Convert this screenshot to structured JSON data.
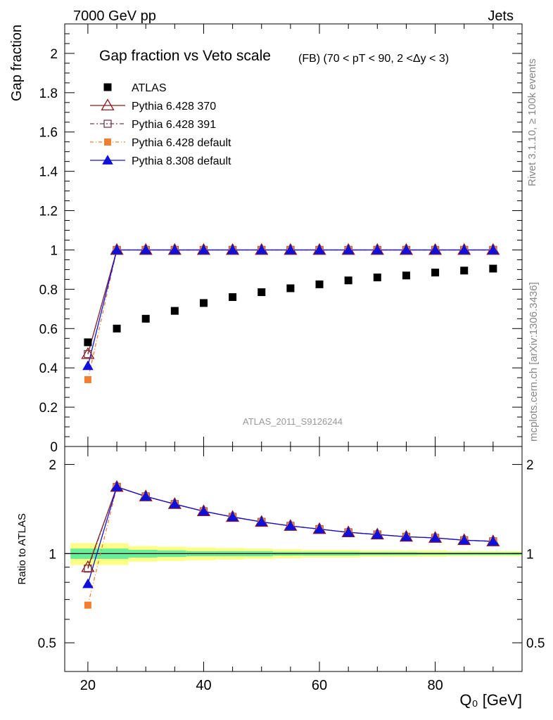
{
  "header": {
    "left": "7000 GeV pp",
    "right": "Jets"
  },
  "side_labels": {
    "rivet": "Rivet 3.1.10, ≥ 100k events",
    "mcplots": "mcplots.cern.ch [arXiv:1306.3436]"
  },
  "watermark": "ATLAS_2011_S9126244",
  "chart_data": [
    {
      "type": "scatter",
      "title": "Gap fraction vs Veto scale",
      "subtitle": "(FB) (70 < pT <  90, 2 <Δy < 3)",
      "ylabel": "Gap fraction",
      "xlabel": "",
      "xlim": [
        16,
        95
      ],
      "ylim": [
        0,
        2.15
      ],
      "yticks": [
        "0",
        "0.2",
        "0.4",
        "0.6",
        "0.8",
        "1",
        "1.2",
        "1.4",
        "1.6",
        "1.8",
        "2"
      ],
      "x": [
        20,
        25,
        30,
        35,
        40,
        45,
        50,
        55,
        60,
        65,
        70,
        75,
        80,
        85,
        90
      ],
      "series": [
        {
          "name": "ATLAS",
          "color": "#000000",
          "marker": "square",
          "values": [
            0.53,
            0.6,
            0.65,
            0.69,
            0.73,
            0.76,
            0.785,
            0.805,
            0.825,
            0.845,
            0.86,
            0.87,
            0.885,
            0.895,
            0.905
          ]
        },
        {
          "name": "Pythia 6.428 370",
          "color": "#8b1a1a",
          "marker": "triangle-open",
          "values": [
            0.47,
            1,
            1,
            1,
            1,
            1,
            1,
            1,
            1,
            1,
            1,
            1,
            1,
            1,
            1
          ]
        },
        {
          "name": "Pythia 6.428 391",
          "color": "#7a3a4a",
          "marker": "square-open",
          "values": [
            0.47,
            1,
            1,
            1,
            1,
            1,
            1,
            1,
            1,
            1,
            1,
            1,
            1,
            1,
            1
          ]
        },
        {
          "name": "Pythia 6.428 default",
          "color": "#f08030",
          "marker": "square",
          "values": [
            0.34,
            1,
            1,
            1,
            1,
            1,
            1,
            1,
            1,
            1,
            1,
            1,
            1,
            1,
            1
          ]
        },
        {
          "name": "Pythia 8.308 default",
          "color": "#1010dd",
          "marker": "triangle",
          "values": [
            0.41,
            1,
            1,
            1,
            1,
            1,
            1,
            1,
            1,
            1,
            1,
            1,
            1,
            1,
            1
          ]
        }
      ]
    },
    {
      "type": "scatter",
      "title": "",
      "ylabel": "Ratio to ATLAS",
      "xlabel": "Q₀ [GeV]",
      "xlim": [
        16,
        95
      ],
      "ylim": [
        0.4,
        2.3
      ],
      "yscale": "log",
      "yticks": [
        "0.5",
        "1",
        "2"
      ],
      "xticks": [
        "20",
        "40",
        "60",
        "80"
      ],
      "x": [
        20,
        25,
        30,
        35,
        40,
        45,
        50,
        55,
        60,
        65,
        70,
        75,
        80,
        85,
        90
      ],
      "series": [
        {
          "name": "Pythia 6.428 370",
          "color": "#8b1a1a",
          "marker": "triangle-open",
          "values": [
            0.9,
            1.68,
            1.56,
            1.47,
            1.39,
            1.33,
            1.28,
            1.24,
            1.21,
            1.18,
            1.16,
            1.14,
            1.13,
            1.11,
            1.1
          ]
        },
        {
          "name": "Pythia 6.428 391",
          "color": "#7a3a4a",
          "marker": "square-open",
          "values": [
            0.89,
            1.68,
            1.56,
            1.47,
            1.39,
            1.33,
            1.28,
            1.24,
            1.21,
            1.18,
            1.16,
            1.14,
            1.13,
            1.11,
            1.1
          ]
        },
        {
          "name": "Pythia 6.428 default",
          "color": "#f08030",
          "marker": "square",
          "values": [
            0.67,
            1.68,
            1.56,
            1.47,
            1.39,
            1.33,
            1.28,
            1.24,
            1.21,
            1.18,
            1.16,
            1.14,
            1.13,
            1.11,
            1.1
          ]
        },
        {
          "name": "Pythia 8.308 default",
          "color": "#1010dd",
          "marker": "triangle",
          "values": [
            0.79,
            1.68,
            1.56,
            1.47,
            1.39,
            1.33,
            1.28,
            1.24,
            1.21,
            1.18,
            1.16,
            1.14,
            1.13,
            1.11,
            1.1
          ]
        }
      ],
      "uncertainty_band": {
        "x": [
          17,
          22,
          27,
          32,
          37,
          42,
          47,
          52,
          57,
          62,
          67,
          72,
          77,
          82,
          87,
          92,
          95
        ],
        "outer": [
          0.085,
          0.085,
          0.06,
          0.055,
          0.05,
          0.045,
          0.04,
          0.035,
          0.03,
          0.03,
          0.025,
          0.025,
          0.025,
          0.02,
          0.02,
          0.02,
          0.02
        ],
        "inner": [
          0.04,
          0.04,
          0.03,
          0.025,
          0.02,
          0.02,
          0.02,
          0.015,
          0.015,
          0.015,
          0.012,
          0.012,
          0.01,
          0.01,
          0.01,
          0.01,
          0.01
        ],
        "outer_color": "#ffff88",
        "inner_color": "#66ee99"
      }
    }
  ]
}
